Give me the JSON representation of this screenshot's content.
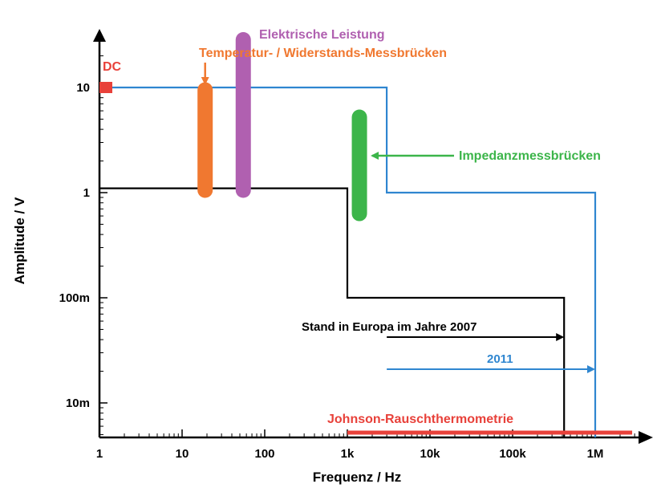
{
  "chart_data": {
    "type": "line",
    "xlabel": "Frequenz / Hz",
    "ylabel": "Amplitude / V",
    "x_scale": "log",
    "y_scale": "log",
    "xlim": [
      1,
      10000000
    ],
    "ylim": [
      0.005,
      40
    ],
    "grid": false,
    "x_ticks": [
      {
        "value": 1,
        "label": "1"
      },
      {
        "value": 10,
        "label": "10"
      },
      {
        "value": 100,
        "label": "100"
      },
      {
        "value": 1000,
        "label": "1k"
      },
      {
        "value": 10000,
        "label": "10k"
      },
      {
        "value": 100000,
        "label": "100k"
      },
      {
        "value": 1000000,
        "label": "1M"
      }
    ],
    "y_ticks": [
      {
        "value": 0.01,
        "label": "10m"
      },
      {
        "value": 0.1,
        "label": "100m"
      },
      {
        "value": 1,
        "label": "1"
      },
      {
        "value": 10,
        "label": "10"
      }
    ],
    "series": [
      {
        "name": "Stand in Europa im Jahre 2007",
        "color": "#000000",
        "points": [
          [
            1,
            1.1
          ],
          [
            1000,
            1.1
          ],
          [
            1000,
            0.1
          ],
          [
            420000,
            0.1
          ],
          [
            420000,
            0.005
          ]
        ]
      },
      {
        "name": "2011",
        "color": "#2f86d0",
        "points": [
          [
            1,
            10
          ],
          [
            3000,
            10
          ],
          [
            3000,
            1
          ],
          [
            1000000,
            1
          ],
          [
            1000000,
            0.005
          ]
        ]
      }
    ],
    "ranges": [
      {
        "label": "Elektrische Leistung",
        "color": "#b060b0",
        "x": 55,
        "y_from": 1,
        "y_to": 30
      },
      {
        "label": "Temperatur- / Widerstands-Messbrücken",
        "color": "#f07830",
        "x": 19,
        "y_from": 1,
        "y_to": 10
      },
      {
        "label": "Impedanzmessbrücken",
        "color": "#3cb54a",
        "x": 1400,
        "y_from": 0.6,
        "y_to": 5.5
      },
      {
        "label": "DC",
        "color": "#e8413a",
        "x": 1.2,
        "y_from": 10,
        "y_to": 10
      },
      {
        "label": "Johnson-Rauschthermometrie",
        "color": "#e8413a",
        "x_from": 1000,
        "x_to": 2800000,
        "y_from": 0.005,
        "y_to": 0.005
      }
    ],
    "arrow_labels": [
      {
        "label": "Stand in Europa im Jahre 2007",
        "color": "#000000",
        "x_from": 3000,
        "x_to": 420000
      },
      {
        "label": "2011",
        "color": "#2f86d0",
        "x_from": 3000,
        "x_to": 1000000
      }
    ]
  }
}
